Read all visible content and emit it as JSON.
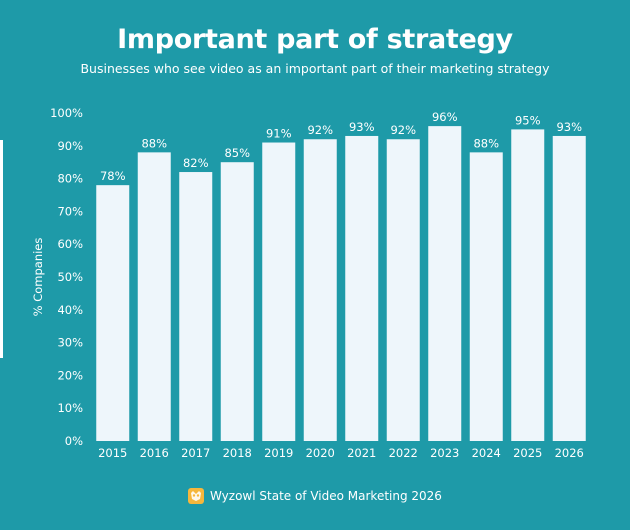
{
  "title": "Important part of strategy",
  "subtitle": "Businesses who see video as an important part of their marketing strategy",
  "footer": {
    "source": "Wyzowl State of Video Marketing 2026",
    "logo_icon": "wyzowl-owl-icon"
  },
  "colors": {
    "background": "#1e9aa8",
    "bar": "#eef6fb",
    "text": "#ffffff",
    "logo": "#f6b73c"
  },
  "chart_data": {
    "type": "bar",
    "title": "Important part of strategy",
    "subtitle": "Businesses who see video as an important part of their marketing strategy",
    "ylabel": "% Companies",
    "xlabel": "",
    "categories": [
      "2015",
      "2016",
      "2017",
      "2018",
      "2019",
      "2020",
      "2021",
      "2022",
      "2023",
      "2024",
      "2025",
      "2026"
    ],
    "values": [
      78,
      88,
      82,
      85,
      91,
      92,
      93,
      92,
      96,
      88,
      95,
      93
    ],
    "value_labels": [
      "78%",
      "88%",
      "82%",
      "85%",
      "91%",
      "92%",
      "93%",
      "92%",
      "96%",
      "88%",
      "95%",
      "93%"
    ],
    "ylim": [
      0,
      100
    ],
    "yticks": [
      "0%",
      "10%",
      "20%",
      "30%",
      "40%",
      "50%",
      "60%",
      "70%",
      "80%",
      "90%",
      "100%"
    ],
    "grid": false,
    "legend": "none"
  }
}
